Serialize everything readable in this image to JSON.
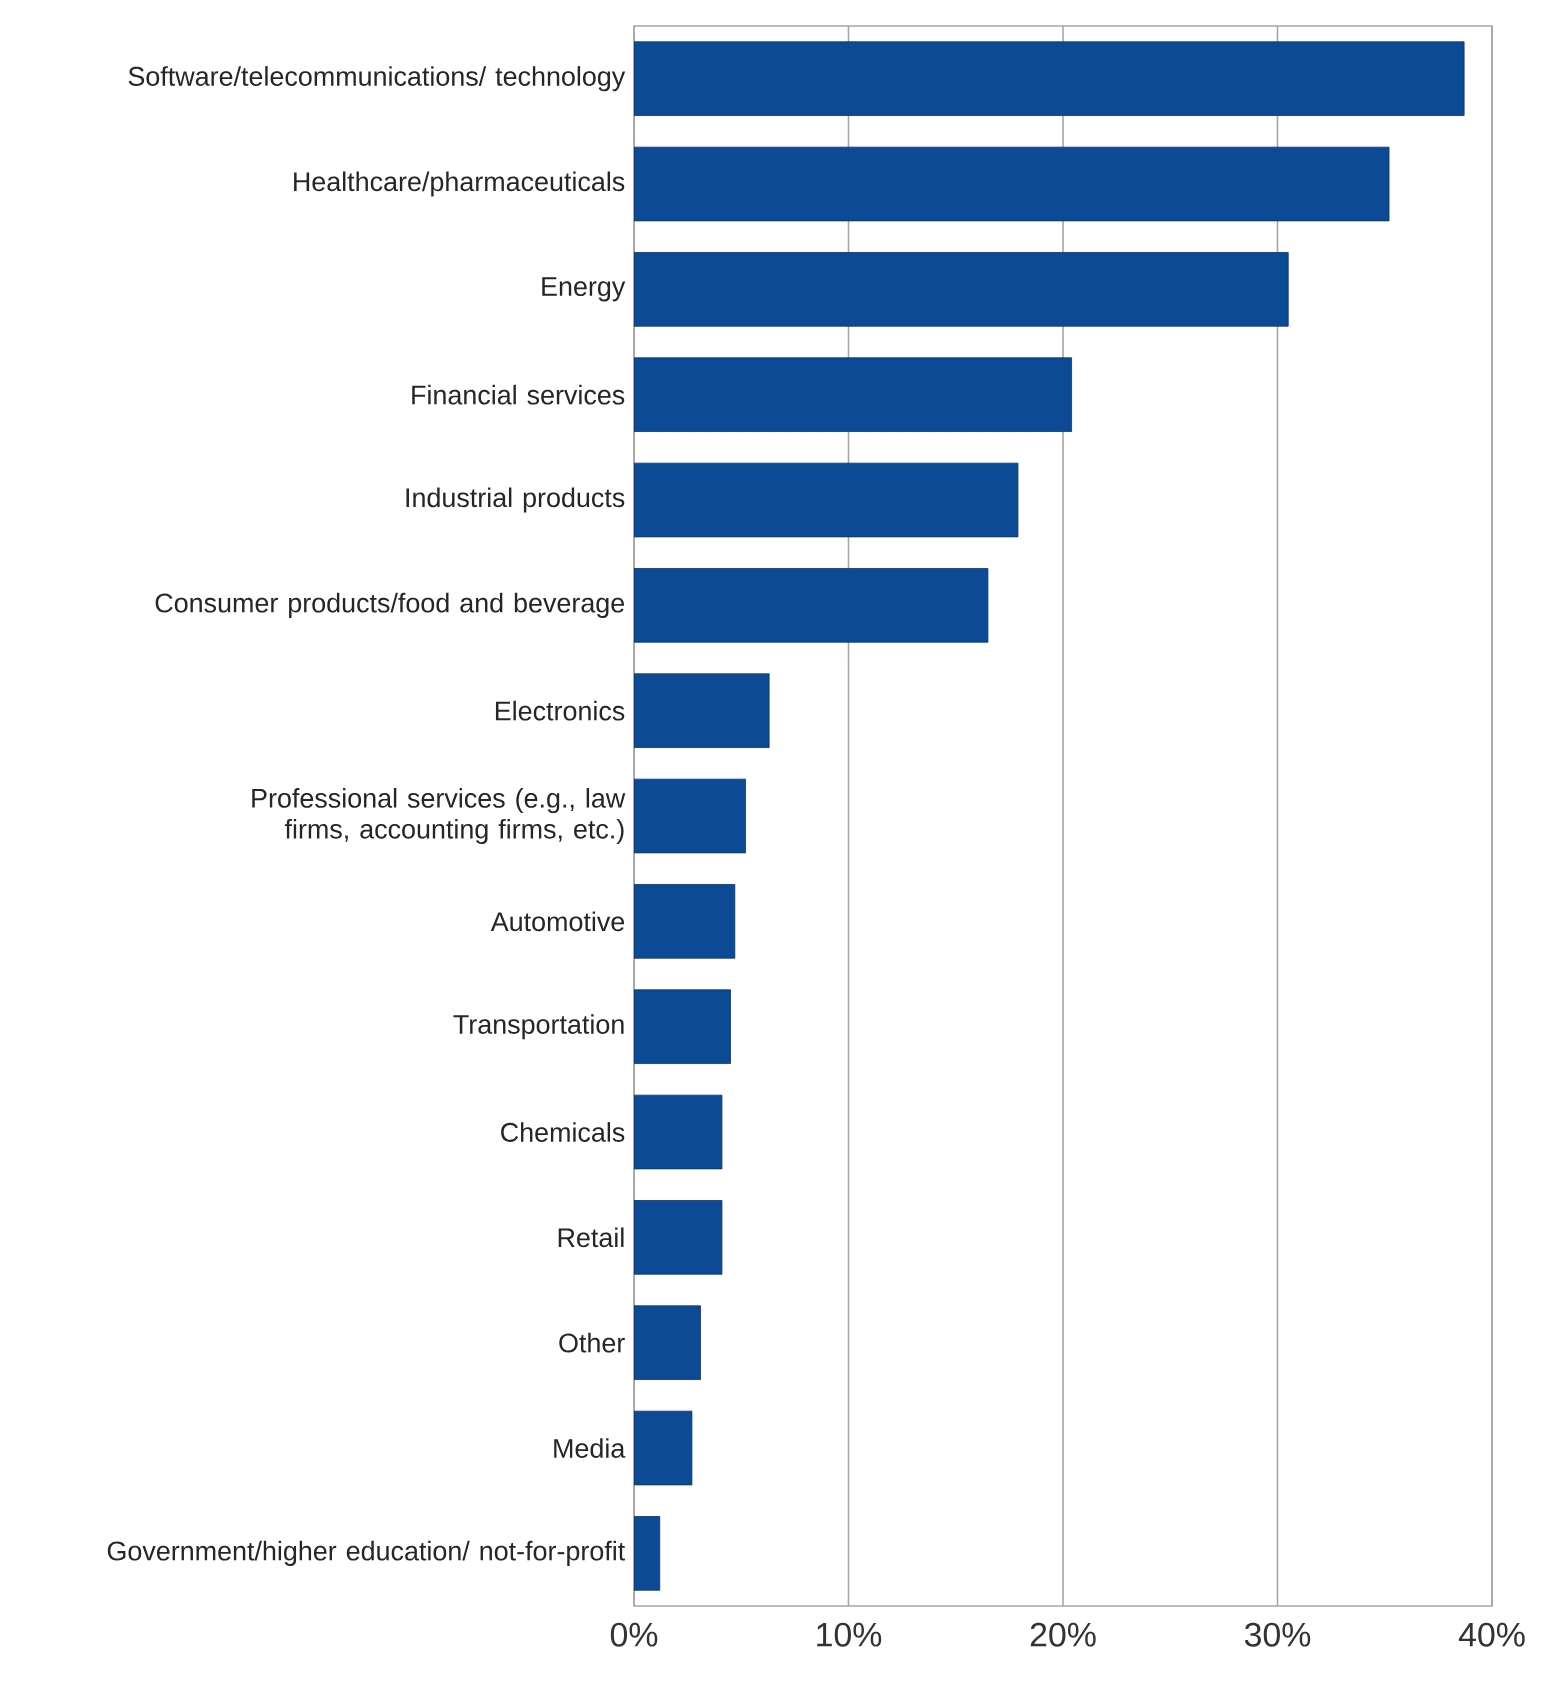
{
  "chart_data": {
    "type": "bar",
    "orientation": "horizontal",
    "categories": [
      "Software/telecommunications/ technology",
      "Healthcare/pharmaceuticals",
      "Energy",
      "Financial services",
      "Industrial products",
      "Consumer products/food and beverage",
      "Electronics",
      "Professional services (e.g., law firms, accounting firms, etc.)",
      "Automotive",
      "Transportation",
      "Chemicals",
      "Retail",
      "Other",
      "Media",
      "Government/higher education/ not-for-profit"
    ],
    "values": [
      38.7,
      35.2,
      30.5,
      20.4,
      17.9,
      16.5,
      6.3,
      5.2,
      4.7,
      4.5,
      4.1,
      4.1,
      3.1,
      2.7,
      1.2
    ],
    "color": "#0d4a96",
    "xlim": [
      0,
      40
    ],
    "xticks": [
      {
        "value": 0,
        "label": "0%"
      },
      {
        "value": 10,
        "label": "10%"
      },
      {
        "value": 20,
        "label": "20%"
      },
      {
        "value": 30,
        "label": "30%"
      },
      {
        "value": 40,
        "label": "40%"
      }
    ],
    "grid": "x"
  }
}
